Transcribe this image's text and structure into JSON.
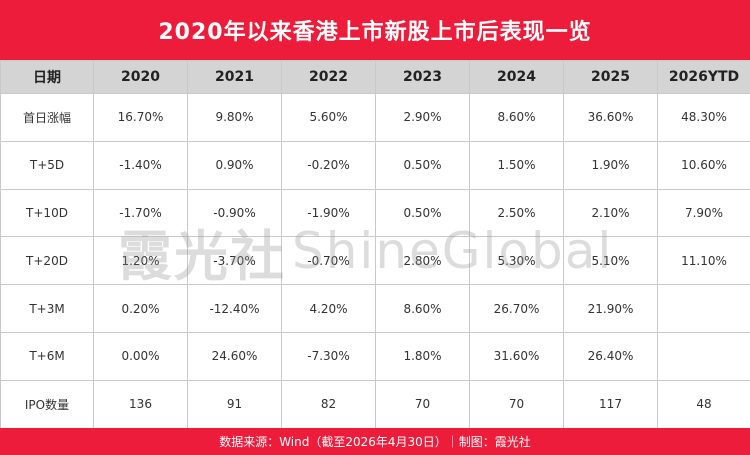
{
  "title": "2020年以来香港上市新股上市后表现一览",
  "table": {
    "headers": [
      "日期",
      "2020",
      "2021",
      "2022",
      "2023",
      "2024",
      "2025",
      "2026YTD"
    ],
    "rows": [
      {
        "label": "首日涨幅",
        "cells": [
          "16.70%",
          "9.80%",
          "5.60%",
          "2.90%",
          "8.60%",
          "36.60%",
          "48.30%"
        ]
      },
      {
        "label": "T+5D",
        "cells": [
          "-1.40%",
          "0.90%",
          "-0.20%",
          "0.50%",
          "1.50%",
          "1.90%",
          "10.60%"
        ]
      },
      {
        "label": "T+10D",
        "cells": [
          "-1.70%",
          "-0.90%",
          "-1.90%",
          "0.50%",
          "2.50%",
          "2.10%",
          "7.90%"
        ]
      },
      {
        "label": "T+20D",
        "cells": [
          "1.20%",
          "-3.70%",
          "-0.70%",
          "2.80%",
          "5.30%",
          "5.10%",
          "11.10%"
        ]
      },
      {
        "label": "T+3M",
        "cells": [
          "0.20%",
          "-12.40%",
          "4.20%",
          "8.60%",
          "26.70%",
          "21.90%",
          ""
        ]
      },
      {
        "label": "T+6M",
        "cells": [
          "0.00%",
          "24.60%",
          "-7.30%",
          "1.80%",
          "31.60%",
          "26.40%",
          ""
        ]
      },
      {
        "label": "IPO数量",
        "cells": [
          "136",
          "91",
          "82",
          "70",
          "70",
          "117",
          "48"
        ]
      }
    ]
  },
  "watermark": {
    "cn": "霞光社",
    "latin": "ShineGlobal"
  },
  "footer": "数据来源：Wind（截至2026年4月30日）｜制图：霞光社",
  "colors": {
    "brand_red": "#ee1c3b",
    "header_gray": "#d4d4d4",
    "border": "#c9c9c9"
  }
}
